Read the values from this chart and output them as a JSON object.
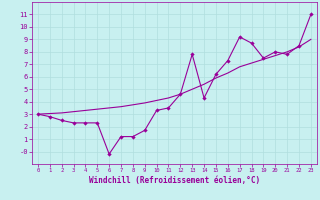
{
  "xlabel": "Windchill (Refroidissement éolien,°C)",
  "bg_color": "#c8f0f0",
  "grid_color": "#b0dede",
  "line_color": "#990099",
  "x_data": [
    0,
    1,
    2,
    3,
    4,
    5,
    6,
    7,
    8,
    9,
    10,
    11,
    12,
    13,
    14,
    15,
    16,
    17,
    18,
    19,
    20,
    21,
    22,
    23
  ],
  "y_jagged": [
    3.0,
    2.8,
    2.5,
    2.3,
    2.3,
    2.3,
    -0.2,
    1.2,
    1.2,
    1.7,
    3.3,
    3.5,
    4.6,
    7.8,
    4.3,
    6.2,
    7.3,
    9.2,
    8.7,
    7.5,
    8.0,
    7.8,
    8.5,
    11.0
  ],
  "y_trend": [
    3.0,
    3.05,
    3.1,
    3.2,
    3.3,
    3.4,
    3.5,
    3.6,
    3.75,
    3.9,
    4.1,
    4.3,
    4.6,
    5.0,
    5.4,
    5.9,
    6.3,
    6.8,
    7.1,
    7.4,
    7.7,
    8.0,
    8.4,
    9.0
  ],
  "xlim": [
    -0.5,
    23.5
  ],
  "ylim": [
    -1.0,
    12.0
  ],
  "yticks": [
    0,
    1,
    2,
    3,
    4,
    5,
    6,
    7,
    8,
    9,
    10,
    11
  ],
  "ytick_labels": [
    "-0",
    "1",
    "2",
    "3",
    "4",
    "5",
    "6",
    "7",
    "8",
    "9",
    "10",
    "11"
  ],
  "xticks": [
    0,
    1,
    2,
    3,
    4,
    5,
    6,
    7,
    8,
    9,
    10,
    11,
    12,
    13,
    14,
    15,
    16,
    17,
    18,
    19,
    20,
    21,
    22,
    23
  ]
}
